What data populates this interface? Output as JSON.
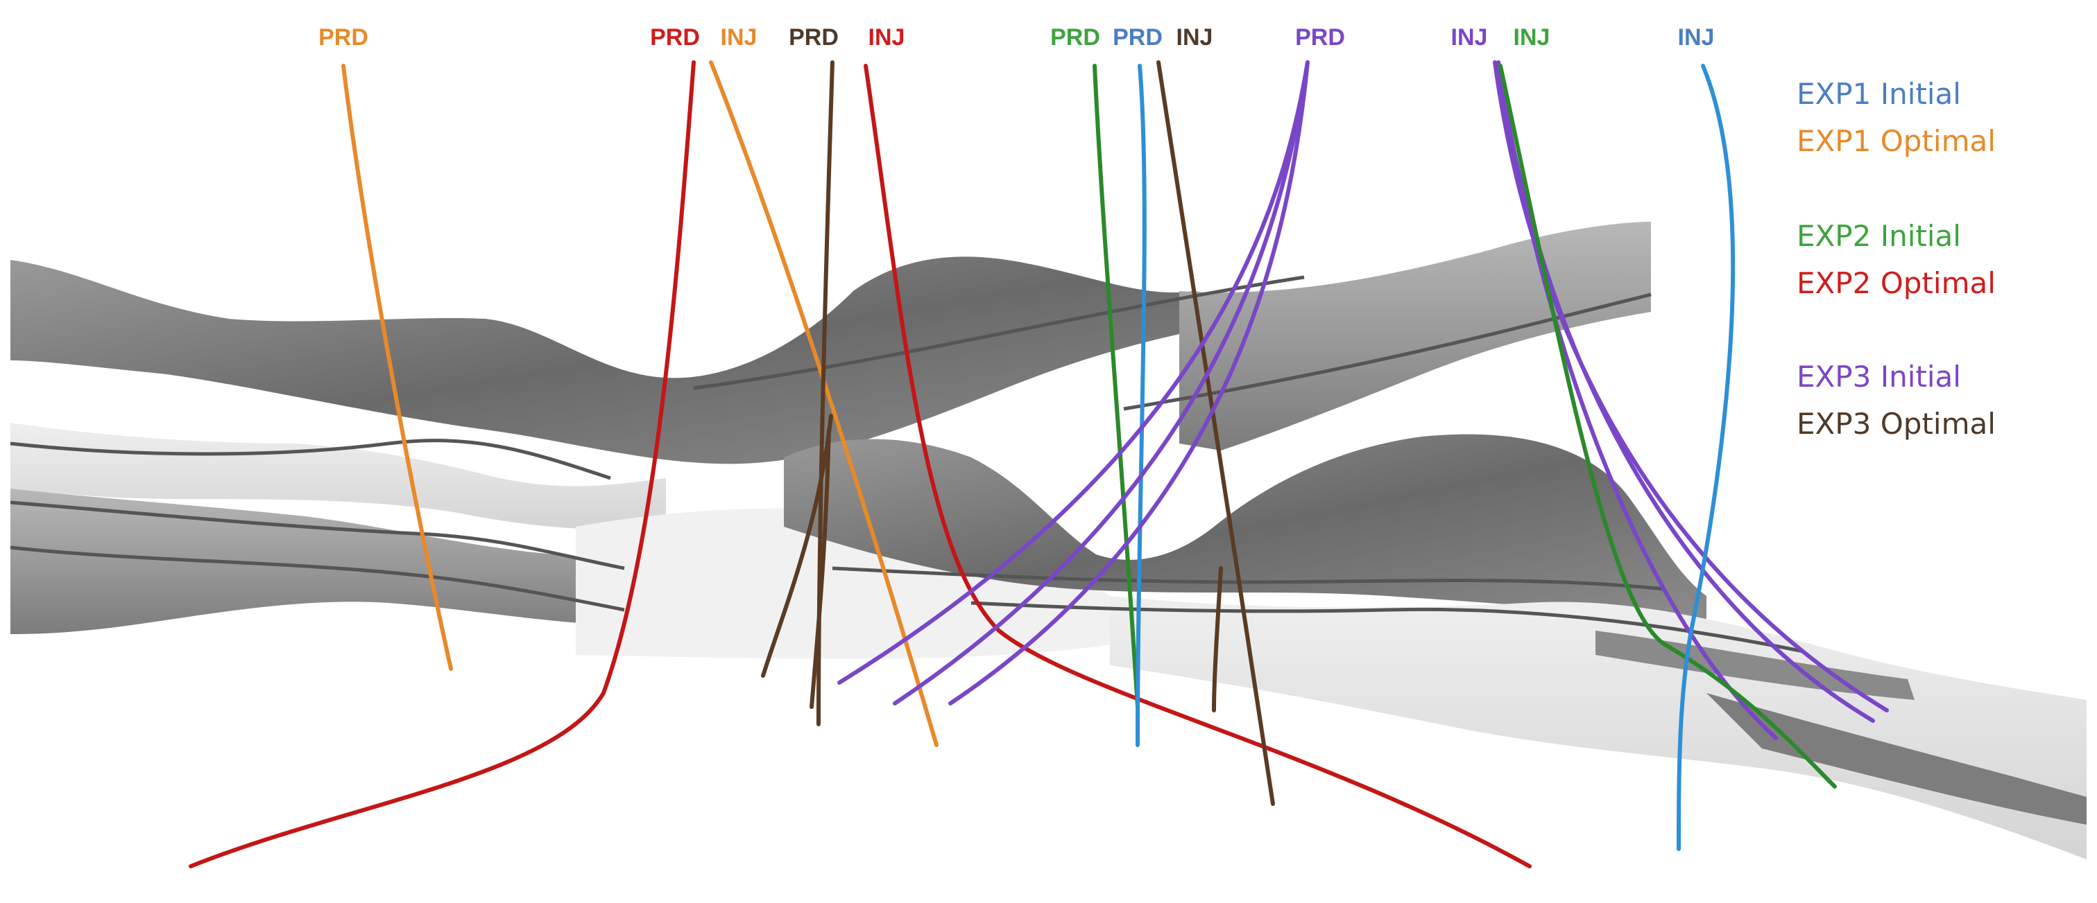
{
  "colors": {
    "exp1_initial": "#2e8fd6",
    "exp1_optimal": "#e8892a",
    "exp2_initial": "#2a8a2a",
    "exp2_optimal": "#c41616",
    "exp3_initial": "#7a46c8",
    "exp3_optimal": "#5b3b22",
    "exp1_initial_label": "#4a7fc0",
    "exp2_optimal_label": "#d01c1c",
    "exp2_initial_label": "#3ea33e",
    "exp3_optimal_label": "#4e3a2a"
  },
  "well_labels": [
    {
      "text": "PRD",
      "group": "exp1_optimal"
    },
    {
      "text": "PRD",
      "group": "exp2_optimal"
    },
    {
      "text": "INJ",
      "group": "exp1_optimal"
    },
    {
      "text": "PRD",
      "group": "exp3_optimal"
    },
    {
      "text": "INJ",
      "group": "exp2_optimal"
    },
    {
      "text": "PRD",
      "group": "exp2_initial"
    },
    {
      "text": "PRD",
      "group": "exp1_initial"
    },
    {
      "text": "INJ",
      "group": "exp3_optimal"
    },
    {
      "text": "PRD",
      "group": "exp3_initial"
    },
    {
      "text": "INJ",
      "group": "exp3_initial"
    },
    {
      "text": "INJ",
      "group": "exp2_initial"
    },
    {
      "text": "INJ",
      "group": "exp1_initial"
    }
  ],
  "legend": [
    {
      "text": "EXP1 Initial",
      "group": "exp1_initial"
    },
    {
      "text": "EXP1 Optimal",
      "group": "exp1_optimal"
    },
    {
      "text": "EXP2 Initial",
      "group": "exp2_initial"
    },
    {
      "text": "EXP2 Optimal",
      "group": "exp2_optimal"
    },
    {
      "text": "EXP3 Initial",
      "group": "exp3_initial"
    },
    {
      "text": "EXP3 Optimal",
      "group": "exp3_optimal"
    }
  ]
}
